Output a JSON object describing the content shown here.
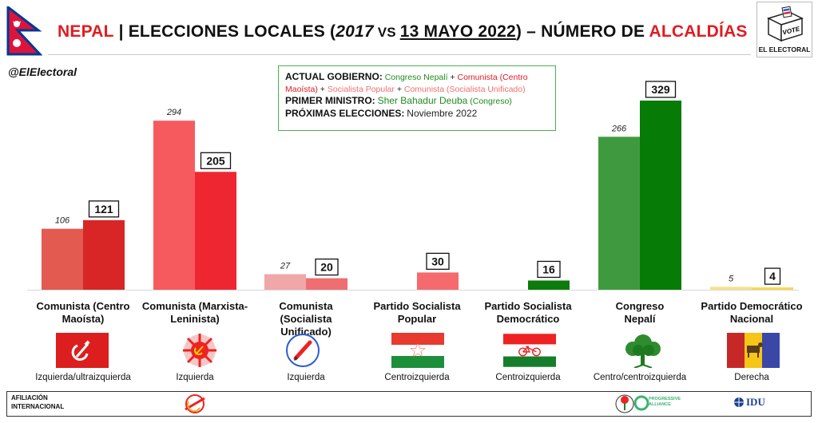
{
  "header": {
    "title_country": "NEPAL",
    "title_sep": "|",
    "title_pre": "ELECCIONES LOCALES (",
    "title_year": "2017",
    "title_vs": " VS ",
    "title_date": "13 MAYO 2022",
    "title_post": ") – NÚMERO DE ",
    "title_end": "ALCALDÍAS",
    "logo_vote": "VOTE",
    "logo_text": "EL ELECTORAL",
    "handle": "@ElElectoral"
  },
  "info_box": {
    "gov_label": "ACTUAL GOBIERNO:",
    "gov_p1": "Congreso Nepalí",
    "plus": "+",
    "gov_p2": "Comunista (Centro",
    "gov_p2b": "Maoísta)",
    "gov_p3": "Socialista Popular",
    "gov_p4": "Comunista (Socialista Unificado)",
    "pm_label": "PRIMER MINISTRO:",
    "pm_name": "Sher Bahadur Deuba",
    "pm_party": "(Congreso)",
    "next_label": "PRÓXIMAS ELECCIONES",
    "next_colon": ":",
    "next_value": "Noviembre 2022"
  },
  "chart_data": {
    "type": "bar",
    "title": "ELECCIONES LOCALES (2017 VS 13 MAYO 2022) – NÚMERO DE ALCALDÍAS",
    "categories": [
      "Comunista (Centro Maoísta)",
      "Comunista (Marxista-Leninista)",
      "Comunista (Socialista Unificado)",
      "Partido Socialista Popular",
      "Partido Socialista Democrático",
      "Congreso Nepalí",
      "Partido Democrático Nacional"
    ],
    "series": [
      {
        "values": [
          106,
          294,
          27,
          null,
          null,
          266,
          5
        ]
      },
      {
        "values": [
          121,
          205,
          20,
          30,
          16,
          329,
          4
        ]
      }
    ],
    "colors_2017": [
      "#e25a50",
      "#f75a5e",
      "#f0a7a8",
      null,
      null,
      "#3f9a3f",
      "#f7e08a"
    ],
    "colors_2022": [
      "#d82626",
      "#ee2631",
      "#ee6e72",
      "#f56a6c",
      "#0c7a0c",
      "#067c06",
      "#f5d84c"
    ],
    "ylim": [
      0,
      340
    ]
  },
  "parties": [
    {
      "name_l1": "Comunista (Centro",
      "name_l2": "Maoísta)",
      "ideology": "Izquierda/ultraizquierda"
    },
    {
      "name_l1": "Comunista (Marxista-",
      "name_l2": "Leninista)",
      "ideology": "Izquierda"
    },
    {
      "name_l1": "Comunista (Socialista",
      "name_l2": "Unificado)",
      "ideology": "Izquierda"
    },
    {
      "name_l1": "Partido Socialista",
      "name_l2": "Popular",
      "ideology": "Centroizquierda"
    },
    {
      "name_l1": "Partido Socialista",
      "name_l2": "Democrático",
      "ideology": "Centroizquierda"
    },
    {
      "name_l1": "Congreso",
      "name_l2": "Nepalí",
      "ideology": "Centro/centroizquierda"
    },
    {
      "name_l1": "Partido Democrático",
      "name_l2": "Nacional",
      "ideology": "Derecha"
    }
  ],
  "affiliation": {
    "label_l1": "AFILIACIÓN",
    "label_l2": "INTERNACIONAL",
    "pa_l1": "PROGRESSIVE",
    "pa_l2": "ALLIANCE",
    "idu": "IDU"
  }
}
